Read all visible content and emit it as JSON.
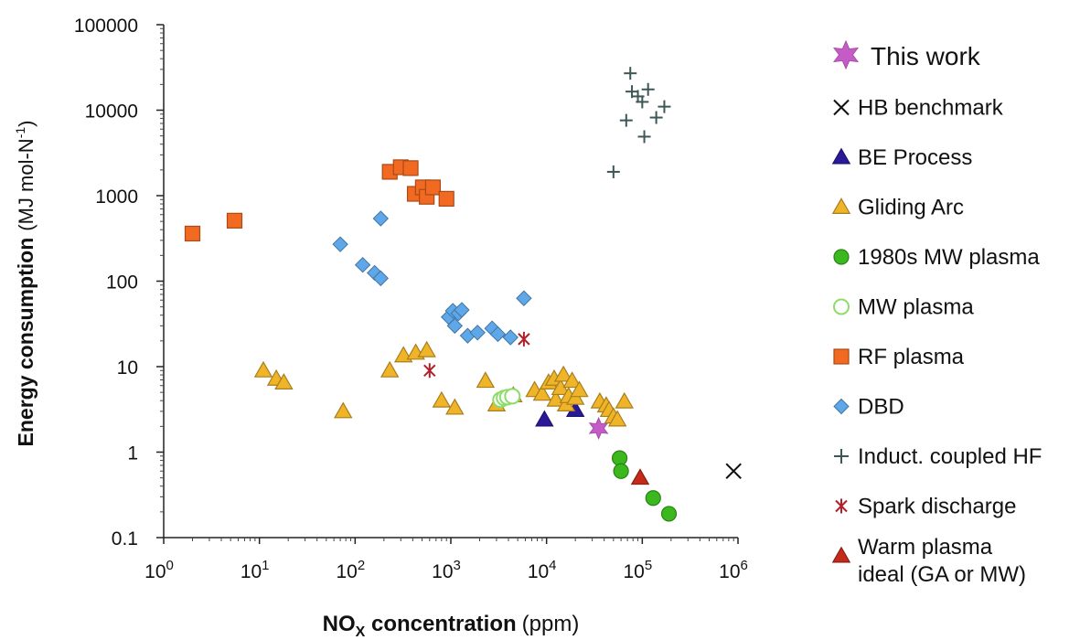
{
  "chart_data": {
    "type": "scatter",
    "title": "",
    "x_scale": "log",
    "y_scale": "log",
    "xlim": [
      1,
      1000000
    ],
    "ylim": [
      0.1,
      100000
    ],
    "xlabel": {
      "bold": "NO",
      "sub": "X",
      "rest": " concentration",
      "unit": "(ppm)"
    },
    "ylabel": {
      "bold": "Energy consumption",
      "unit": "(MJ mol-N",
      "sup": "-1",
      "close": ")"
    },
    "x_ticks": [
      {
        "value": 1,
        "base": "10",
        "exp": "0"
      },
      {
        "value": 10,
        "base": "10",
        "exp": "1"
      },
      {
        "value": 100,
        "base": "10",
        "exp": "2"
      },
      {
        "value": 1000,
        "base": "10",
        "exp": "3"
      },
      {
        "value": 10000,
        "base": "10",
        "exp": "4"
      },
      {
        "value": 100000,
        "base": "10",
        "exp": "5"
      },
      {
        "value": 1000000,
        "base": "10",
        "exp": "6"
      }
    ],
    "y_ticks": [
      {
        "value": 0.1,
        "label": "0.1"
      },
      {
        "value": 1,
        "label": "1"
      },
      {
        "value": 10,
        "label": "10"
      },
      {
        "value": 100,
        "label": "100"
      },
      {
        "value": 1000,
        "label": "1000"
      },
      {
        "value": 10000,
        "label": "10000"
      },
      {
        "value": 100000,
        "label": "100000"
      }
    ],
    "grid": false,
    "legend_position": "right",
    "series": [
      {
        "name": "This work",
        "marker": "star6",
        "color": "#c45bc7",
        "points": [
          [
            35000,
            1.9
          ]
        ]
      },
      {
        "name": "HB benchmark",
        "marker": "x",
        "color": "#111111",
        "points": [
          [
            900000,
            0.6
          ]
        ]
      },
      {
        "name": "BE Process",
        "marker": "triangle",
        "color": "#2a1a9a",
        "points": [
          [
            9500,
            2.4
          ],
          [
            20000,
            3.1
          ]
        ]
      },
      {
        "name": "Gliding Arc",
        "marker": "triangle",
        "color": "#f0b429",
        "points": [
          [
            11,
            9
          ],
          [
            15,
            7.2
          ],
          [
            18,
            6.5
          ],
          [
            75,
            3
          ],
          [
            230,
            9
          ],
          [
            320,
            13.5
          ],
          [
            430,
            14.5
          ],
          [
            560,
            15.5
          ],
          [
            800,
            4
          ],
          [
            1100,
            3.3
          ],
          [
            2300,
            6.8
          ],
          [
            3000,
            3.6
          ],
          [
            4500,
            4.6
          ],
          [
            7500,
            5.3
          ],
          [
            9000,
            4.8
          ],
          [
            10500,
            6.5
          ],
          [
            12000,
            7.2
          ],
          [
            12500,
            4.1
          ],
          [
            14000,
            5.6
          ],
          [
            15000,
            8
          ],
          [
            16000,
            3.6
          ],
          [
            17000,
            4.5
          ],
          [
            18500,
            6.8
          ],
          [
            20000,
            4.3
          ],
          [
            22000,
            5.3
          ],
          [
            36000,
            3.9
          ],
          [
            42000,
            3.5
          ],
          [
            45000,
            3.1
          ],
          [
            50000,
            2.6
          ],
          [
            55000,
            2.4
          ],
          [
            65000,
            3.9
          ]
        ]
      },
      {
        "name": "1980s MW plasma",
        "marker": "circle",
        "color": "#3cb81f",
        "points": [
          [
            58000,
            0.85
          ],
          [
            60000,
            0.6
          ],
          [
            130000,
            0.29
          ],
          [
            190000,
            0.19
          ]
        ]
      },
      {
        "name": "MW plasma",
        "marker": "circle-open",
        "color": "#8cdc6a",
        "points": [
          [
            3300,
            4.1
          ],
          [
            3600,
            4.3
          ],
          [
            3900,
            4.4
          ],
          [
            4400,
            4.5
          ]
        ]
      },
      {
        "name": "RF plasma",
        "marker": "square",
        "color": "#f26a21",
        "points": [
          [
            2,
            360
          ],
          [
            5.5,
            510
          ],
          [
            230,
            1900
          ],
          [
            300,
            2150
          ],
          [
            380,
            2100
          ],
          [
            420,
            1050
          ],
          [
            510,
            1250
          ],
          [
            560,
            970
          ],
          [
            650,
            1250
          ],
          [
            900,
            920
          ]
        ]
      },
      {
        "name": "DBD",
        "marker": "diamond",
        "color": "#5ea7e8",
        "points": [
          [
            70,
            270
          ],
          [
            120,
            155
          ],
          [
            160,
            125
          ],
          [
            185,
            108
          ],
          [
            185,
            540
          ],
          [
            950,
            38
          ],
          [
            1050,
            45
          ],
          [
            1100,
            30
          ],
          [
            1200,
            42
          ],
          [
            1300,
            46
          ],
          [
            1500,
            23
          ],
          [
            1900,
            25
          ],
          [
            2700,
            28
          ],
          [
            3100,
            24
          ],
          [
            4200,
            22
          ],
          [
            5800,
            63
          ]
        ]
      },
      {
        "name": "Induct. coupled HF",
        "marker": "plus",
        "color": "#3d5656",
        "points": [
          [
            50000,
            1900
          ],
          [
            68000,
            7600
          ],
          [
            75000,
            27000
          ],
          [
            78000,
            16500
          ],
          [
            90000,
            14500
          ],
          [
            100000,
            12500
          ],
          [
            105000,
            4900
          ],
          [
            115000,
            17500
          ],
          [
            140000,
            8200
          ],
          [
            170000,
            11000
          ]
        ]
      },
      {
        "name": "Spark discharge",
        "marker": "asterisk",
        "color": "#b0202a",
        "points": [
          [
            600,
            9
          ],
          [
            5800,
            21
          ]
        ]
      },
      {
        "name": "Warm plasma ideal (GA or MW)",
        "legend_lines": [
          "Warm plasma",
          "ideal (GA or MW)"
        ],
        "marker": "triangle",
        "color": "#c62a1b",
        "points": [
          [
            95000,
            0.5
          ]
        ]
      }
    ]
  }
}
